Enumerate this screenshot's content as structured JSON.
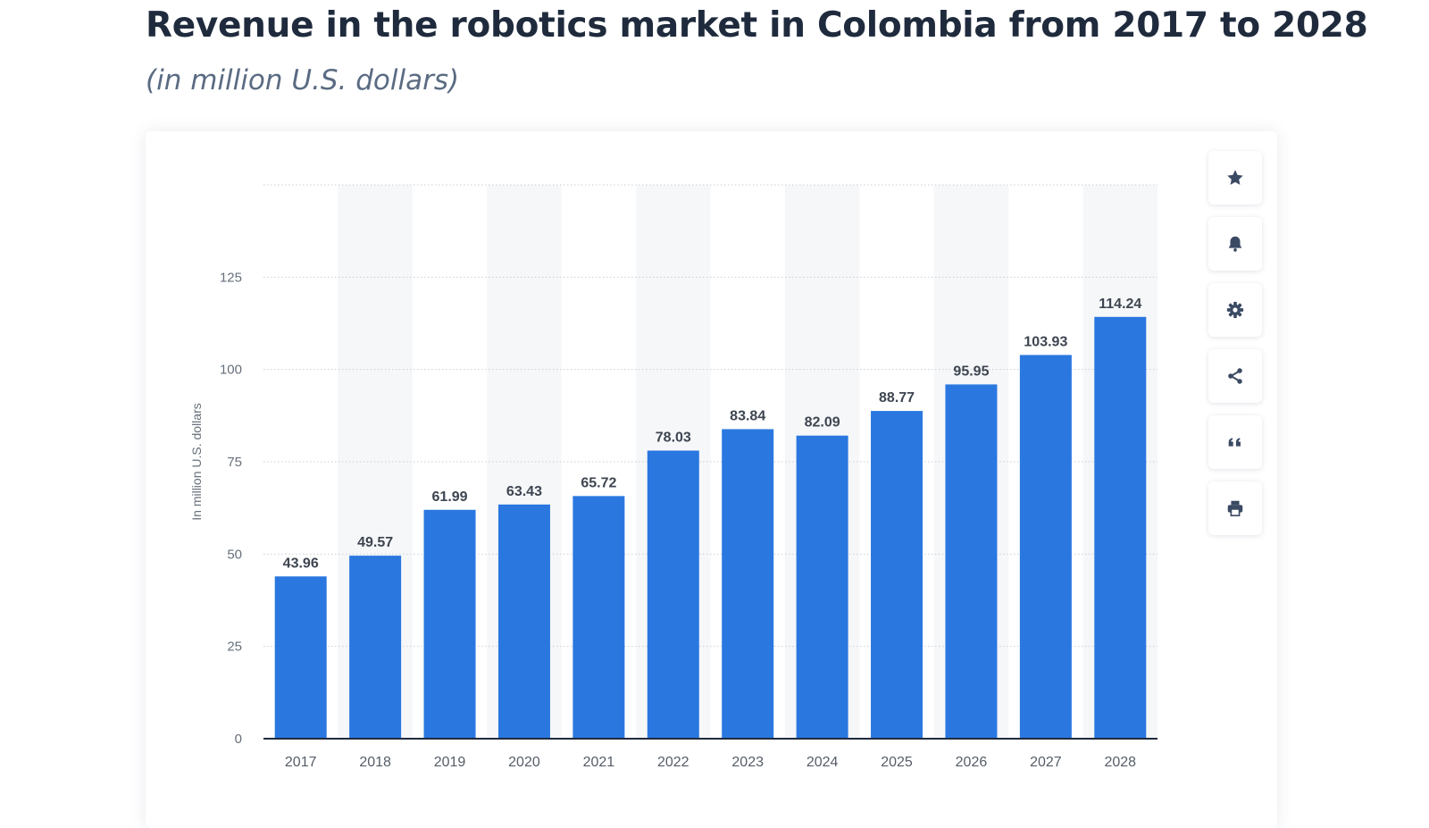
{
  "header": {
    "title": "Revenue in the robotics market in Colombia from 2017 to 2028",
    "subtitle": "(in million U.S. dollars)"
  },
  "toolbar": {
    "icons": [
      "star-icon",
      "bell-icon",
      "gear-icon",
      "share-icon",
      "quote-icon",
      "print-icon"
    ]
  },
  "colors": {
    "bar": "#2a77e0",
    "title": "#1f2b3d",
    "subtitle": "#5a6b82",
    "icon": "#3b4a63"
  },
  "chart_data": {
    "type": "bar",
    "categories": [
      "2017",
      "2018",
      "2019",
      "2020",
      "2021",
      "2022",
      "2023",
      "2024",
      "2025",
      "2026",
      "2027",
      "2028"
    ],
    "series": [
      {
        "values": [
          43.96,
          49.57,
          61.99,
          63.43,
          65.72,
          78.03,
          83.84,
          82.09,
          88.77,
          95.95,
          103.93,
          114.24
        ],
        "labels": [
          "43.96",
          "49.57",
          "61.99",
          "63.43",
          "65.72",
          "78.03",
          "83.84",
          "82.09",
          "88.77",
          "95.95",
          "103.93",
          "114.24"
        ]
      }
    ],
    "ylabel": "In million U.S. dollars",
    "xlabel": "",
    "ylim": [
      0,
      150
    ],
    "yticks": [
      0,
      25,
      50,
      75,
      100,
      125,
      150
    ],
    "ytick_labels": [
      "0",
      "25",
      "50",
      "75",
      "100",
      "125",
      ""
    ],
    "grid": true,
    "legend": "none"
  }
}
